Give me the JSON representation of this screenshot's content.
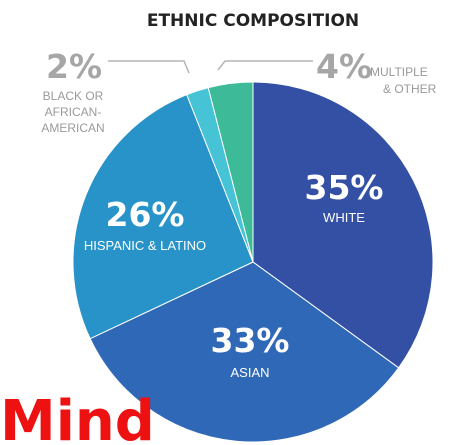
{
  "chart_data": {
    "type": "pie",
    "title": "ETHNIC COMPOSITION",
    "slices": [
      {
        "label": "WHITE",
        "percent_label": "35%",
        "value": 35,
        "color": "#3350a5"
      },
      {
        "label": "ASIAN",
        "percent_label": "33%",
        "value": 33,
        "color": "#2f68b6"
      },
      {
        "label": "HISPANIC & LATINO",
        "percent_label": "26%",
        "value": 26,
        "color": "#2793c8"
      },
      {
        "label_lines": [
          "BLACK OR",
          "AFRICAN-",
          "AMERICAN"
        ],
        "percent_label": "2%",
        "value": 2,
        "color": "#47c3d6"
      },
      {
        "label_lines": [
          "MULTIPLE",
          "& OTHER"
        ],
        "percent_label": "4%",
        "value": 4,
        "color": "#3dbb98"
      }
    ]
  },
  "overlay": {
    "text": "Mind",
    "color": "#ee1111"
  }
}
